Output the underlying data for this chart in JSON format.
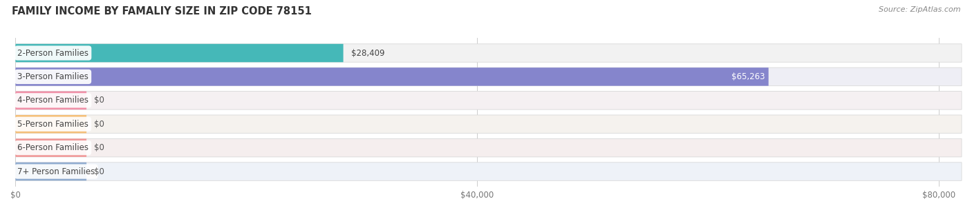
{
  "title": "FAMILY INCOME BY FAMALIY SIZE IN ZIP CODE 78151",
  "source": "Source: ZipAtlas.com",
  "categories": [
    "2-Person Families",
    "3-Person Families",
    "4-Person Families",
    "5-Person Families",
    "6-Person Families",
    "7+ Person Families"
  ],
  "values": [
    28409,
    65263,
    0,
    0,
    0,
    0
  ],
  "bar_colors": [
    "#45b8b8",
    "#8585cc",
    "#f090a8",
    "#f5c07a",
    "#f09898",
    "#90acd0"
  ],
  "row_bg_colors": [
    "#f2f2f2",
    "#eeeef5",
    "#f5f0f2",
    "#f5f2ee",
    "#f5eeee",
    "#eef2f8"
  ],
  "value_labels": [
    "$28,409",
    "$65,263",
    "$0",
    "$0",
    "$0",
    "$0"
  ],
  "value_inside": [
    false,
    true,
    false,
    false,
    false,
    false
  ],
  "xlim": [
    0,
    82000
  ],
  "xticks": [
    0,
    40000,
    80000
  ],
  "xticklabels": [
    "$0",
    "$40,000",
    "$80,000"
  ],
  "title_fontsize": 10.5,
  "source_fontsize": 8,
  "label_fontsize": 8.5,
  "value_fontsize": 8.5,
  "bar_height": 0.65,
  "figsize": [
    14.06,
    3.05
  ],
  "dpi": 100
}
